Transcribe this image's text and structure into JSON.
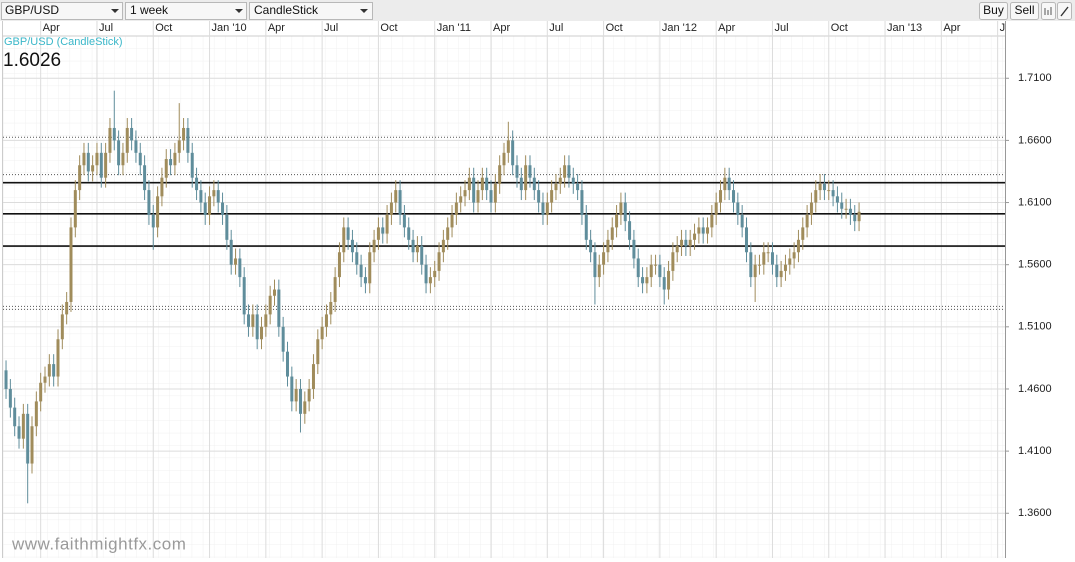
{
  "toolbar": {
    "symbol": "GBP/USD",
    "interval": "1 week",
    "chart_style": "CandleStick",
    "buy": "Buy",
    "sell": "Sell"
  },
  "watermark": "www.faithmightfx.com",
  "chart_data": {
    "type": "candlestick",
    "series_label": "GBP/USD (CandleStick)",
    "up_color": "#a08c5b",
    "down_color": "#5f8d9b",
    "grid": true,
    "ylim": [
      1.324,
      1.744
    ],
    "yticks": [
      {
        "value": 1.71,
        "label": "1.7100"
      },
      {
        "value": 1.66,
        "label": "1.6600"
      },
      {
        "value": 1.61,
        "label": "1.6100"
      },
      {
        "value": 1.56,
        "label": "1.5600"
      },
      {
        "value": 1.51,
        "label": "1.5100"
      },
      {
        "value": 1.46,
        "label": "1.4600"
      },
      {
        "value": 1.41,
        "label": "1.4100"
      },
      {
        "value": 1.36,
        "label": "1.3600"
      }
    ],
    "xlim": [
      -0.7,
      230.7
    ],
    "xticks": [
      {
        "value": 8,
        "label": "Apr"
      },
      {
        "value": 21,
        "label": "Jul"
      },
      {
        "value": 34,
        "label": "Oct"
      },
      {
        "value": 47,
        "label": "Jan '10"
      },
      {
        "value": 60,
        "label": "Apr"
      },
      {
        "value": 73,
        "label": "Jul"
      },
      {
        "value": 86,
        "label": "Oct"
      },
      {
        "value": 99,
        "label": "Jan '11"
      },
      {
        "value": 112,
        "label": "Apr"
      },
      {
        "value": 125,
        "label": "Jul"
      },
      {
        "value": 138,
        "label": "Oct"
      },
      {
        "value": 151,
        "label": "Jan '12"
      },
      {
        "value": 164,
        "label": "Apr"
      },
      {
        "value": 177,
        "label": "Jul"
      },
      {
        "value": 190,
        "label": "Oct"
      },
      {
        "value": 203,
        "label": "Jan '13"
      },
      {
        "value": 216,
        "label": "Apr"
      },
      {
        "value": 229,
        "label": "Jul"
      }
    ],
    "levels": [
      {
        "value": 1.626,
        "style": "solid"
      },
      {
        "value": 1.6009,
        "style": "solid"
      },
      {
        "value": 1.575,
        "style": "solid"
      },
      {
        "value": 1.6625,
        "style": "dotted"
      },
      {
        "value": 1.6325,
        "style": "dotted"
      },
      {
        "value": 1.5265,
        "style": "dotted"
      },
      {
        "value": 1.524,
        "style": "dotted"
      }
    ],
    "ohlc": [
      [
        1.475,
        1.483,
        1.452,
        1.46
      ],
      [
        1.46,
        1.468,
        1.437,
        1.445
      ],
      [
        1.445,
        1.453,
        1.422,
        1.43
      ],
      [
        1.43,
        1.438,
        1.412,
        1.42
      ],
      [
        1.42,
        1.448,
        1.412,
        1.44
      ],
      [
        1.44,
        1.448,
        1.368,
        1.4
      ],
      [
        1.4,
        1.438,
        1.392,
        1.43
      ],
      [
        1.43,
        1.458,
        1.422,
        1.45
      ],
      [
        1.45,
        1.473,
        1.442,
        1.465
      ],
      [
        1.465,
        1.478,
        1.457,
        1.47
      ],
      [
        1.47,
        1.488,
        1.462,
        1.48
      ],
      [
        1.48,
        1.488,
        1.462,
        1.47
      ],
      [
        1.47,
        1.508,
        1.462,
        1.5
      ],
      [
        1.5,
        1.528,
        1.492,
        1.52
      ],
      [
        1.52,
        1.538,
        1.512,
        1.53
      ],
      [
        1.53,
        1.598,
        1.522,
        1.59
      ],
      [
        1.59,
        1.628,
        1.582,
        1.62
      ],
      [
        1.62,
        1.648,
        1.612,
        1.64
      ],
      [
        1.64,
        1.658,
        1.632,
        1.65
      ],
      [
        1.65,
        1.658,
        1.627,
        1.635
      ],
      [
        1.635,
        1.648,
        1.627,
        1.64
      ],
      [
        1.64,
        1.658,
        1.632,
        1.65
      ],
      [
        1.65,
        1.658,
        1.622,
        1.63
      ],
      [
        1.63,
        1.658,
        1.622,
        1.65
      ],
      [
        1.65,
        1.678,
        1.642,
        1.67
      ],
      [
        1.67,
        1.7,
        1.652,
        1.66
      ],
      [
        1.66,
        1.668,
        1.632,
        1.64
      ],
      [
        1.64,
        1.658,
        1.632,
        1.65
      ],
      [
        1.65,
        1.678,
        1.642,
        1.67
      ],
      [
        1.67,
        1.678,
        1.652,
        1.66
      ],
      [
        1.66,
        1.668,
        1.642,
        1.65
      ],
      [
        1.65,
        1.658,
        1.632,
        1.64
      ],
      [
        1.64,
        1.648,
        1.612,
        1.62
      ],
      [
        1.62,
        1.628,
        1.592,
        1.6
      ],
      [
        1.6,
        1.608,
        1.572,
        1.59
      ],
      [
        1.59,
        1.623,
        1.582,
        1.615
      ],
      [
        1.615,
        1.638,
        1.607,
        1.63
      ],
      [
        1.63,
        1.653,
        1.622,
        1.645
      ],
      [
        1.645,
        1.653,
        1.632,
        1.64
      ],
      [
        1.64,
        1.658,
        1.632,
        1.65
      ],
      [
        1.65,
        1.69,
        1.642,
        1.66
      ],
      [
        1.66,
        1.678,
        1.652,
        1.67
      ],
      [
        1.67,
        1.678,
        1.642,
        1.65
      ],
      [
        1.65,
        1.658,
        1.622,
        1.63
      ],
      [
        1.63,
        1.638,
        1.612,
        1.62
      ],
      [
        1.62,
        1.628,
        1.602,
        1.61
      ],
      [
        1.61,
        1.618,
        1.592,
        1.6
      ],
      [
        1.6,
        1.623,
        1.592,
        1.615
      ],
      [
        1.615,
        1.628,
        1.607,
        1.62
      ],
      [
        1.62,
        1.628,
        1.602,
        1.61
      ],
      [
        1.61,
        1.618,
        1.592,
        1.6
      ],
      [
        1.6,
        1.608,
        1.572,
        1.58
      ],
      [
        1.58,
        1.588,
        1.552,
        1.56
      ],
      [
        1.56,
        1.573,
        1.552,
        1.565
      ],
      [
        1.565,
        1.573,
        1.542,
        1.55
      ],
      [
        1.55,
        1.558,
        1.512,
        1.52
      ],
      [
        1.52,
        1.528,
        1.502,
        1.51
      ],
      [
        1.51,
        1.528,
        1.502,
        1.52
      ],
      [
        1.52,
        1.528,
        1.492,
        1.5
      ],
      [
        1.5,
        1.518,
        1.492,
        1.51
      ],
      [
        1.51,
        1.528,
        1.502,
        1.52
      ],
      [
        1.52,
        1.543,
        1.512,
        1.535
      ],
      [
        1.535,
        1.548,
        1.527,
        1.54
      ],
      [
        1.54,
        1.548,
        1.502,
        1.51
      ],
      [
        1.51,
        1.518,
        1.482,
        1.49
      ],
      [
        1.49,
        1.498,
        1.462,
        1.47
      ],
      [
        1.47,
        1.478,
        1.442,
        1.45
      ],
      [
        1.45,
        1.468,
        1.442,
        1.46
      ],
      [
        1.46,
        1.468,
        1.425,
        1.44
      ],
      [
        1.44,
        1.458,
        1.432,
        1.45
      ],
      [
        1.45,
        1.468,
        1.442,
        1.46
      ],
      [
        1.46,
        1.488,
        1.452,
        1.48
      ],
      [
        1.48,
        1.508,
        1.472,
        1.5
      ],
      [
        1.5,
        1.518,
        1.492,
        1.51
      ],
      [
        1.51,
        1.528,
        1.502,
        1.52
      ],
      [
        1.52,
        1.538,
        1.512,
        1.53
      ],
      [
        1.53,
        1.558,
        1.522,
        1.55
      ],
      [
        1.55,
        1.578,
        1.542,
        1.57
      ],
      [
        1.57,
        1.598,
        1.562,
        1.59
      ],
      [
        1.59,
        1.598,
        1.572,
        1.58
      ],
      [
        1.58,
        1.588,
        1.562,
        1.57
      ],
      [
        1.57,
        1.578,
        1.552,
        1.56
      ],
      [
        1.56,
        1.568,
        1.542,
        1.55
      ],
      [
        1.55,
        1.558,
        1.537,
        1.545
      ],
      [
        1.545,
        1.578,
        1.537,
        1.57
      ],
      [
        1.57,
        1.588,
        1.562,
        1.58
      ],
      [
        1.58,
        1.598,
        1.572,
        1.59
      ],
      [
        1.59,
        1.598,
        1.577,
        1.585
      ],
      [
        1.585,
        1.608,
        1.577,
        1.6
      ],
      [
        1.6,
        1.618,
        1.592,
        1.61
      ],
      [
        1.61,
        1.628,
        1.602,
        1.62
      ],
      [
        1.62,
        1.628,
        1.592,
        1.6
      ],
      [
        1.6,
        1.608,
        1.582,
        1.59
      ],
      [
        1.59,
        1.598,
        1.572,
        1.58
      ],
      [
        1.58,
        1.588,
        1.562,
        1.57
      ],
      [
        1.57,
        1.583,
        1.562,
        1.575
      ],
      [
        1.575,
        1.583,
        1.552,
        1.56
      ],
      [
        1.56,
        1.568,
        1.537,
        1.545
      ],
      [
        1.545,
        1.558,
        1.537,
        1.55
      ],
      [
        1.55,
        1.563,
        1.542,
        1.555
      ],
      [
        1.555,
        1.578,
        1.547,
        1.57
      ],
      [
        1.57,
        1.588,
        1.562,
        1.58
      ],
      [
        1.58,
        1.598,
        1.572,
        1.59
      ],
      [
        1.59,
        1.608,
        1.582,
        1.6
      ],
      [
        1.6,
        1.618,
        1.592,
        1.61
      ],
      [
        1.61,
        1.623,
        1.602,
        1.615
      ],
      [
        1.615,
        1.628,
        1.607,
        1.62
      ],
      [
        1.62,
        1.638,
        1.612,
        1.63
      ],
      [
        1.63,
        1.638,
        1.602,
        1.61
      ],
      [
        1.61,
        1.628,
        1.602,
        1.62
      ],
      [
        1.62,
        1.638,
        1.612,
        1.63
      ],
      [
        1.63,
        1.638,
        1.612,
        1.62
      ],
      [
        1.62,
        1.628,
        1.602,
        1.61
      ],
      [
        1.61,
        1.633,
        1.602,
        1.625
      ],
      [
        1.625,
        1.648,
        1.617,
        1.64
      ],
      [
        1.64,
        1.658,
        1.632,
        1.65
      ],
      [
        1.65,
        1.675,
        1.642,
        1.66
      ],
      [
        1.66,
        1.668,
        1.632,
        1.64
      ],
      [
        1.64,
        1.648,
        1.622,
        1.63
      ],
      [
        1.63,
        1.638,
        1.612,
        1.62
      ],
      [
        1.62,
        1.648,
        1.612,
        1.64
      ],
      [
        1.64,
        1.648,
        1.622,
        1.63
      ],
      [
        1.63,
        1.638,
        1.612,
        1.62
      ],
      [
        1.62,
        1.628,
        1.602,
        1.61
      ],
      [
        1.61,
        1.618,
        1.592,
        1.6
      ],
      [
        1.6,
        1.618,
        1.592,
        1.61
      ],
      [
        1.61,
        1.628,
        1.602,
        1.62
      ],
      [
        1.62,
        1.633,
        1.612,
        1.625
      ],
      [
        1.625,
        1.638,
        1.617,
        1.63
      ],
      [
        1.63,
        1.648,
        1.622,
        1.64
      ],
      [
        1.64,
        1.648,
        1.622,
        1.63
      ],
      [
        1.63,
        1.638,
        1.617,
        1.625
      ],
      [
        1.625,
        1.633,
        1.612,
        1.62
      ],
      [
        1.62,
        1.628,
        1.592,
        1.6
      ],
      [
        1.6,
        1.608,
        1.572,
        1.58
      ],
      [
        1.58,
        1.588,
        1.562,
        1.57
      ],
      [
        1.57,
        1.578,
        1.528,
        1.55
      ],
      [
        1.55,
        1.568,
        1.542,
        1.56
      ],
      [
        1.56,
        1.578,
        1.552,
        1.57
      ],
      [
        1.57,
        1.588,
        1.562,
        1.58
      ],
      [
        1.58,
        1.598,
        1.572,
        1.59
      ],
      [
        1.59,
        1.608,
        1.582,
        1.6
      ],
      [
        1.6,
        1.618,
        1.592,
        1.61
      ],
      [
        1.61,
        1.618,
        1.587,
        1.595
      ],
      [
        1.595,
        1.603,
        1.572,
        1.58
      ],
      [
        1.58,
        1.588,
        1.557,
        1.565
      ],
      [
        1.565,
        1.573,
        1.542,
        1.55
      ],
      [
        1.55,
        1.558,
        1.537,
        1.545
      ],
      [
        1.545,
        1.558,
        1.537,
        1.55
      ],
      [
        1.55,
        1.568,
        1.542,
        1.56
      ],
      [
        1.56,
        1.568,
        1.552,
        1.56
      ],
      [
        1.56,
        1.568,
        1.542,
        1.55
      ],
      [
        1.55,
        1.558,
        1.528,
        1.54
      ],
      [
        1.54,
        1.563,
        1.532,
        1.555
      ],
      [
        1.555,
        1.578,
        1.547,
        1.57
      ],
      [
        1.57,
        1.583,
        1.562,
        1.575
      ],
      [
        1.575,
        1.588,
        1.567,
        1.58
      ],
      [
        1.58,
        1.588,
        1.567,
        1.575
      ],
      [
        1.575,
        1.588,
        1.567,
        1.58
      ],
      [
        1.58,
        1.593,
        1.572,
        1.585
      ],
      [
        1.585,
        1.598,
        1.577,
        1.59
      ],
      [
        1.59,
        1.598,
        1.577,
        1.585
      ],
      [
        1.585,
        1.598,
        1.577,
        1.59
      ],
      [
        1.59,
        1.608,
        1.582,
        1.6
      ],
      [
        1.6,
        1.618,
        1.592,
        1.61
      ],
      [
        1.61,
        1.628,
        1.602,
        1.62
      ],
      [
        1.62,
        1.638,
        1.612,
        1.63
      ],
      [
        1.63,
        1.638,
        1.612,
        1.62
      ],
      [
        1.62,
        1.628,
        1.602,
        1.61
      ],
      [
        1.61,
        1.618,
        1.592,
        1.6
      ],
      [
        1.6,
        1.608,
        1.582,
        1.59
      ],
      [
        1.59,
        1.598,
        1.562,
        1.57
      ],
      [
        1.57,
        1.578,
        1.542,
        1.55
      ],
      [
        1.55,
        1.568,
        1.53,
        1.56
      ],
      [
        1.56,
        1.568,
        1.552,
        1.56
      ],
      [
        1.56,
        1.578,
        1.552,
        1.57
      ],
      [
        1.57,
        1.578,
        1.562,
        1.57
      ],
      [
        1.57,
        1.578,
        1.552,
        1.56
      ],
      [
        1.56,
        1.568,
        1.542,
        1.55
      ],
      [
        1.55,
        1.563,
        1.542,
        1.555
      ],
      [
        1.555,
        1.568,
        1.547,
        1.56
      ],
      [
        1.56,
        1.573,
        1.552,
        1.565
      ],
      [
        1.565,
        1.578,
        1.557,
        1.57
      ],
      [
        1.57,
        1.588,
        1.562,
        1.58
      ],
      [
        1.58,
        1.598,
        1.572,
        1.59
      ],
      [
        1.59,
        1.608,
        1.582,
        1.6
      ],
      [
        1.6,
        1.618,
        1.592,
        1.61
      ],
      [
        1.61,
        1.628,
        1.602,
        1.62
      ],
      [
        1.62,
        1.633,
        1.612,
        1.625
      ],
      [
        1.625,
        1.633,
        1.612,
        1.62
      ],
      [
        1.62,
        1.628,
        1.612,
        1.62
      ],
      [
        1.62,
        1.628,
        1.607,
        1.615
      ],
      [
        1.615,
        1.623,
        1.602,
        1.61
      ],
      [
        1.61,
        1.618,
        1.597,
        1.605
      ],
      [
        1.605,
        1.613,
        1.597,
        1.605
      ],
      [
        1.605,
        1.613,
        1.592,
        1.6
      ],
      [
        1.6,
        1.608,
        1.587,
        1.595
      ],
      [
        1.595,
        1.61,
        1.587,
        1.6026
      ]
    ]
  }
}
